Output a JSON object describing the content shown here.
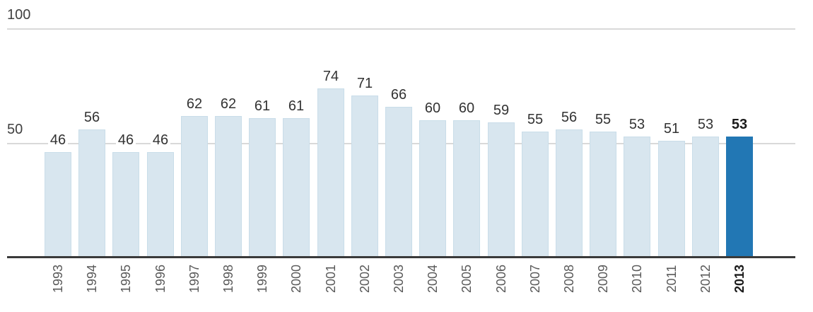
{
  "chart_data": {
    "type": "bar",
    "categories": [
      "1993",
      "1994",
      "1995",
      "1996",
      "1997",
      "1998",
      "1999",
      "2000",
      "2001",
      "2002",
      "2003",
      "2004",
      "2005",
      "2006",
      "2007",
      "2008",
      "2009",
      "2010",
      "2011",
      "2012",
      "2013"
    ],
    "values": [
      46,
      56,
      46,
      46,
      62,
      62,
      61,
      61,
      74,
      71,
      66,
      60,
      60,
      59,
      55,
      56,
      55,
      53,
      51,
      53,
      53
    ],
    "highlighted_category": "2013",
    "ylim": [
      0,
      100
    ],
    "y_gridlines": [
      100,
      50
    ],
    "grid": "horizontal",
    "legend": "none",
    "value_labels_shown": true
  },
  "colors": {
    "background": "#ffffff",
    "bar": "#d8e6ef",
    "bar_border": "#c9dde9",
    "bar_highlight": "#2277b4",
    "gridline": "#d9d9d9",
    "axis_line": "#3a3a3a",
    "value_label": "#333333",
    "axis_label": "#404040",
    "tick_label": "#595959",
    "tick_label_highlight": "#1a1a1a"
  }
}
